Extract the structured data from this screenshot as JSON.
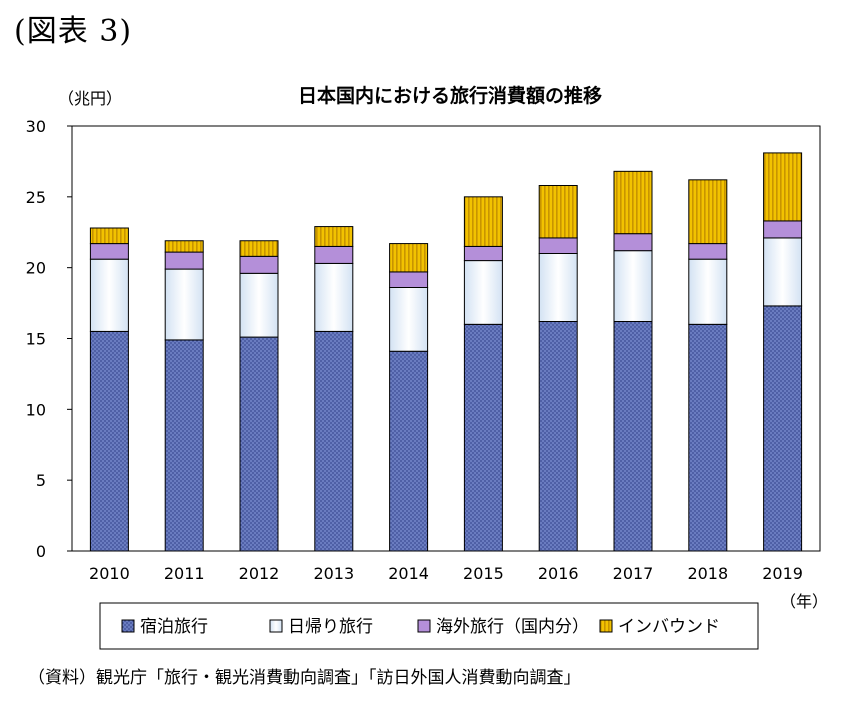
{
  "figure_label": "(図表 3)",
  "source_note": "（資料）観光庁「旅行・観光消費動向調査」「訪日外国人消費動向調査」",
  "chart_data": {
    "type": "bar",
    "stacked": true,
    "title": "日本国内における旅行消費額の推移",
    "ylabel": "（兆円）",
    "xlabel": "（年）",
    "ylim": [
      0,
      30
    ],
    "yticks": [
      "0",
      "5",
      "10",
      "15",
      "20",
      "25",
      "30"
    ],
    "grid": false,
    "legend_position": "bottom",
    "categories": [
      "2010",
      "2011",
      "2012",
      "2013",
      "2014",
      "2015",
      "2016",
      "2017",
      "2018",
      "2019"
    ],
    "series": [
      {
        "name": "宿泊旅行",
        "color": "#5b6fb4",
        "pattern": "dots",
        "values": [
          15.5,
          14.9,
          15.1,
          15.5,
          14.1,
          16.0,
          16.2,
          16.2,
          16.0,
          17.3
        ]
      },
      {
        "name": "日帰り旅行",
        "color": "#eaf2fb",
        "pattern": "gradient",
        "values": [
          5.1,
          5.0,
          4.5,
          4.8,
          4.5,
          4.5,
          4.8,
          5.0,
          4.6,
          4.8
        ]
      },
      {
        "name": "海外旅行（国内分）",
        "color": "#b48fd9",
        "pattern": "solid",
        "values": [
          1.1,
          1.2,
          1.2,
          1.2,
          1.1,
          1.0,
          1.1,
          1.2,
          1.1,
          1.2
        ]
      },
      {
        "name": "インバウンド",
        "color": "#e8b000",
        "pattern": "stripes",
        "values": [
          1.1,
          0.8,
          1.1,
          1.4,
          2.0,
          3.5,
          3.7,
          4.4,
          4.5,
          4.8
        ]
      }
    ]
  }
}
